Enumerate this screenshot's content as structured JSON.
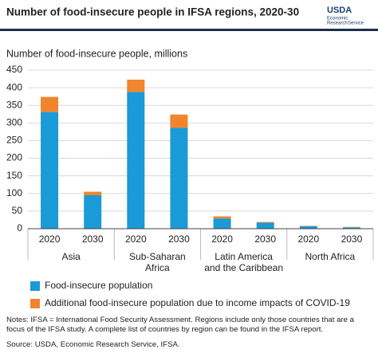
{
  "chart_data": {
    "type": "stacked_bar",
    "title": "Number of food-insecure people in IFSA regions, 2020-30",
    "logo": {
      "mark": "USDA",
      "lines": [
        "Economic",
        "Research",
        "Service"
      ]
    },
    "y_label": "Number of food-insecure people, millions",
    "categories": [
      "2020",
      "2030",
      "2020",
      "2030",
      "2020",
      "2030",
      "2020",
      "2030"
    ],
    "groups": [
      [
        "Asia"
      ],
      [
        "Sub-Saharan",
        "Africa"
      ],
      [
        "Latin America",
        "and the Caribbean"
      ],
      [
        "North Africa"
      ]
    ],
    "series": [
      {
        "name": "Food-insecure population",
        "color": "#1a9ad6",
        "values": [
          331,
          95,
          388,
          286,
          29,
          17,
          7,
          4
        ]
      },
      {
        "name": "Additional food-insecure population due to income impacts of COVID-19",
        "color": "#f0852d",
        "values": [
          43,
          10,
          35,
          38,
          6,
          2,
          1,
          1
        ]
      }
    ],
    "ylim": [
      0,
      450
    ],
    "yticks": [
      0,
      50,
      100,
      150,
      200,
      250,
      300,
      350,
      400,
      450
    ],
    "grid": true,
    "notes": "Notes: IFSA = International Food Security Assessment. Regions include only those countries that are a focus of the IFSA study. A complete list of countries by region can be found in the IFSA report.",
    "source": "Source: USDA, Economic Research Service, IFSA."
  }
}
